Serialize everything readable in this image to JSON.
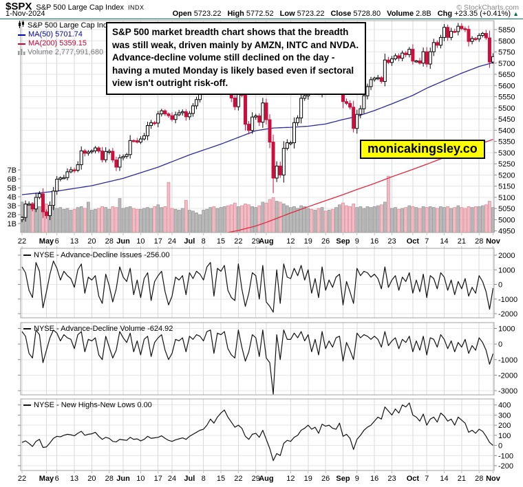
{
  "header": {
    "symbol": "$SPX",
    "name": "S&P 500 Large Cap Index",
    "exchange": "INDX",
    "date": "1-Nov-2024",
    "copyright": "© StockCharts.com"
  },
  "quote": {
    "open_label": "Open",
    "open": "5723.22",
    "high_label": "High",
    "high": "5772.52",
    "low_label": "Low",
    "low": "5723.22",
    "close_label": "Close",
    "close": "5728.80",
    "volume_label": "Volume",
    "volume": "2.8B",
    "chg_label": "Chg",
    "chg": "+23.35 (+0.41%)",
    "up_arrow": "▲"
  },
  "legend": {
    "title": "S&P 500 Large Cap Index",
    "ma50": "MA(50) 5701.74",
    "ma200": "MA(200) 5359.15",
    "volume": "Volume 2,777,991,680"
  },
  "panel_legends": [
    {
      "label": "NYSE - Advance-Decline Issues",
      "value": "-256.00"
    },
    {
      "label": "NYSE - Advance-Decline Volume",
      "value": "-624.92"
    },
    {
      "label": "NYSE - New Highs-New Lows",
      "value": "0.00"
    }
  ],
  "annotation": {
    "text": "S&P 500 market breadth chart shows that the breadth was still weak, driven mainly by AMZN, INTC and NVDA. Advance-decline volume still declined on the day - having a muted Monday is likely based even if sectoral view isn't outright risk-off."
  },
  "watermark": "monicakingsley.co",
  "colors": {
    "up_candle_fill": "#ffffff",
    "up_candle_stroke": "#000000",
    "down_candle": "#cc0f3c",
    "ma50": "#2a2a9e",
    "ma200": "#e0283f",
    "ma50_text": "#0000b0",
    "ma200_text": "#cc0033",
    "volume_text": "#777777",
    "vol_up_fill": "#b6b6b6",
    "vol_up_stroke": "#8e8e8e",
    "vol_down_fill": "#f2b9c2",
    "vol_down_stroke": "#d9808f",
    "grid_h": "#e6e6e6",
    "grid_v": "#d9d9d9",
    "panel_border": "#a0a0a0",
    "tick": "#888888",
    "line_black": "#111111",
    "chg_green": "#007744",
    "watermark_bg": "#ffff00"
  },
  "chart_data": [
    {
      "type": "candlestick",
      "title": "S&P 500 Large Cap Index with MA(50), MA(200) and volume",
      "ylim": [
        4940,
        5890
      ],
      "y_ticks": [
        5850,
        5800,
        5750,
        5700,
        5650,
        5600,
        5550,
        5500,
        5450,
        5400,
        5350,
        5300,
        5250,
        5200,
        5150,
        5100,
        5050,
        5000,
        4950
      ],
      "volume_axis_ticks": [
        7,
        6,
        5,
        4,
        3,
        2,
        1
      ],
      "volume_axis_unit": "B",
      "x_ticks": [
        {
          "i": 0,
          "l": "22"
        },
        {
          "i": 7,
          "l": "May",
          "b": 1
        },
        {
          "i": 10,
          "l": "6"
        },
        {
          "i": 15,
          "l": "13"
        },
        {
          "i": 20,
          "l": "20"
        },
        {
          "i": 25,
          "l": "28"
        },
        {
          "i": 29,
          "l": "Jun",
          "b": 1
        },
        {
          "i": 34,
          "l": "10"
        },
        {
          "i": 39,
          "l": "17"
        },
        {
          "i": 43,
          "l": "24"
        },
        {
          "i": 48,
          "l": "Jul",
          "b": 1
        },
        {
          "i": 52,
          "l": "8"
        },
        {
          "i": 57,
          "l": "15"
        },
        {
          "i": 62,
          "l": "22"
        },
        {
          "i": 67,
          "l": "29"
        },
        {
          "i": 70,
          "l": "Aug",
          "b": 1
        },
        {
          "i": 77,
          "l": "12"
        },
        {
          "i": 82,
          "l": "19"
        },
        {
          "i": 87,
          "l": "26"
        },
        {
          "i": 92,
          "l": "Sep",
          "b": 1
        },
        {
          "i": 96,
          "l": "9"
        },
        {
          "i": 101,
          "l": "16"
        },
        {
          "i": 106,
          "l": "23"
        },
        {
          "i": 112,
          "l": "Oct",
          "b": 1
        },
        {
          "i": 116,
          "l": "7"
        },
        {
          "i": 121,
          "l": "14"
        },
        {
          "i": 126,
          "l": "21"
        },
        {
          "i": 131,
          "l": "28"
        },
        {
          "i": 135,
          "l": "Nov",
          "b": 1
        }
      ],
      "close": [
        5010,
        5070,
        5070,
        5048,
        5100,
        5116,
        5035,
        5018,
        5064,
        5128,
        5181,
        5187,
        5188,
        5214,
        5223,
        5221,
        5246,
        5308,
        5297,
        5303,
        5308,
        5321,
        5307,
        5268,
        5305,
        5306,
        5267,
        5235,
        5277,
        5283,
        5291,
        5354,
        5353,
        5347,
        5361,
        5375,
        5421,
        5434,
        5432,
        5473,
        5487,
        5473,
        5465,
        5448,
        5469,
        5478,
        5483,
        5460,
        5475,
        5509,
        5537,
        5567,
        5573,
        5577,
        5634,
        5585,
        5615,
        5631,
        5667,
        5588,
        5544,
        5505,
        5564,
        5556,
        5427,
        5399,
        5459,
        5464,
        5436,
        5522,
        5447,
        5347,
        5186,
        5240,
        5200,
        5319,
        5344,
        5344,
        5434,
        5455,
        5543,
        5554,
        5608,
        5597,
        5620,
        5570,
        5635,
        5616,
        5626,
        5592,
        5592,
        5648,
        5528,
        5520,
        5503,
        5408,
        5471,
        5496,
        5554,
        5595,
        5626,
        5633,
        5635,
        5618,
        5714,
        5703,
        5719,
        5733,
        5722,
        5745,
        5738,
        5762,
        5709,
        5710,
        5700,
        5751,
        5696,
        5751,
        5792,
        5780,
        5815,
        5860,
        5815,
        5842,
        5841,
        5865,
        5854,
        5851,
        5797,
        5810,
        5808,
        5824,
        5833,
        5813,
        5705,
        5729
      ],
      "volume_billions": [
        3.4,
        3.2,
        3.1,
        3.3,
        3.0,
        2.9,
        3.5,
        3.2,
        3.0,
        2.9,
        2.7,
        2.8,
        2.6,
        2.7,
        2.5,
        2.6,
        2.8,
        2.9,
        2.7,
        3.4,
        2.5,
        2.6,
        2.7,
        2.9,
        2.8,
        2.6,
        2.9,
        2.8,
        3.8,
        2.7,
        2.8,
        2.9,
        2.7,
        2.6,
        2.6,
        2.7,
        2.8,
        2.7,
        2.9,
        3.1,
        2.8,
        2.9,
        5.6,
        2.7,
        2.6,
        2.5,
        2.7,
        3.6,
        2.5,
        2.4,
        2.2,
        2.0,
        2.5,
        2.6,
        2.8,
        2.9,
        2.7,
        2.8,
        2.9,
        3.0,
        3.1,
        3.3,
        2.9,
        3.0,
        3.2,
        3.1,
        2.9,
        2.8,
        3.0,
        3.4,
        3.3,
        3.7,
        3.9,
        3.5,
        3.4,
        3.2,
        3.0,
        2.8,
        2.9,
        2.7,
        3.0,
        2.9,
        2.7,
        2.6,
        2.5,
        2.7,
        2.8,
        2.4,
        2.5,
        2.6,
        2.8,
        3.1,
        3.3,
        3.0,
        2.9,
        3.2,
        2.8,
        2.9,
        2.7,
        2.9,
        2.8,
        2.9,
        3.0,
        3.1,
        3.4,
        6.3,
        2.7,
        2.8,
        2.6,
        2.7,
        2.8,
        3.0,
        2.9,
        2.8,
        2.7,
        2.9,
        2.8,
        2.9,
        2.8,
        2.7,
        2.9,
        2.8,
        2.9,
        2.7,
        2.8,
        3.0,
        2.8,
        2.7,
        2.9,
        2.8,
        2.9,
        2.9,
        3.0,
        3.1,
        3.5,
        2.8
      ],
      "ma50_anchors": [
        [
          0,
          5112
        ],
        [
          10,
          5128
        ],
        [
          20,
          5152
        ],
        [
          29,
          5185
        ],
        [
          39,
          5235
        ],
        [
          48,
          5290
        ],
        [
          57,
          5338
        ],
        [
          67,
          5398
        ],
        [
          72,
          5410
        ],
        [
          77,
          5413
        ],
        [
          82,
          5418
        ],
        [
          87,
          5428
        ],
        [
          92,
          5448
        ],
        [
          96,
          5462
        ],
        [
          101,
          5488
        ],
        [
          106,
          5518
        ],
        [
          112,
          5556
        ],
        [
          116,
          5588
        ],
        [
          121,
          5622
        ],
        [
          126,
          5655
        ],
        [
          131,
          5685
        ],
        [
          135,
          5702
        ]
      ],
      "ma200_anchors": [
        [
          58,
          4940
        ],
        [
          62,
          4952
        ],
        [
          67,
          4972
        ],
        [
          70,
          4988
        ],
        [
          77,
          5030
        ],
        [
          82,
          5058
        ],
        [
          87,
          5085
        ],
        [
          92,
          5112
        ],
        [
          96,
          5135
        ],
        [
          101,
          5162
        ],
        [
          106,
          5192
        ],
        [
          112,
          5225
        ],
        [
          116,
          5248
        ],
        [
          121,
          5278
        ],
        [
          126,
          5308
        ],
        [
          131,
          5338
        ],
        [
          135,
          5359
        ]
      ],
      "wick_low_overrides": {
        "72": 5119,
        "95": 5390
      }
    },
    {
      "type": "line",
      "title": "NYSE - Advance-Decline Issues",
      "last_value": -256.0,
      "y_ticks": [
        2000,
        1000,
        0,
        -1000,
        -2000
      ],
      "ylim": [
        -2300,
        2450
      ],
      "values": [
        1200,
        800,
        -400,
        -900,
        1500,
        900,
        -1600,
        -500,
        700,
        1600,
        1100,
        300,
        900,
        600,
        400,
        -200,
        1000,
        1400,
        -600,
        500,
        300,
        600,
        -800,
        -1300,
        700,
        -100,
        -1200,
        -300,
        1200,
        500,
        200,
        1100,
        -700,
        300,
        -900,
        400,
        800,
        -1100,
        200,
        600,
        900,
        -500,
        -1400,
        -800,
        500,
        300,
        600,
        -700,
        800,
        400,
        900,
        700,
        300,
        1200,
        1500,
        -800,
        1100,
        900,
        1300,
        -400,
        -900,
        -1100,
        1400,
        -300,
        -1500,
        -600,
        800,
        600,
        -1000,
        1300,
        -1200,
        -1500,
        -1900,
        1000,
        -1300,
        1400,
        500,
        400,
        1100,
        600,
        1300,
        300,
        1000,
        -600,
        400,
        -900,
        1200,
        -400,
        300,
        -200,
        500,
        700,
        -1400,
        200,
        -500,
        -1300,
        1100,
        600,
        900,
        800,
        500,
        700,
        400,
        -300,
        1200,
        -200,
        300,
        600,
        -400,
        500,
        200,
        800,
        -600,
        300,
        -500,
        700,
        -900,
        600,
        400,
        -300,
        800,
        500,
        -400,
        300,
        -700,
        200,
        -300,
        400,
        -800,
        -200,
        -600,
        600,
        200,
        -500,
        -1700,
        -256
      ]
    },
    {
      "type": "line",
      "title": "NYSE - Advance-Decline Volume",
      "last_value": -624.92,
      "y_ticks": [
        1000,
        0,
        -1000,
        -2000,
        -3000
      ],
      "ylim": [
        -3450,
        1380
      ],
      "values": [
        800,
        500,
        -600,
        -900,
        900,
        600,
        -1200,
        -400,
        400,
        900,
        700,
        200,
        600,
        400,
        300,
        -300,
        600,
        800,
        -500,
        300,
        200,
        400,
        -700,
        -1000,
        500,
        -200,
        -900,
        -400,
        800,
        400,
        100,
        700,
        -500,
        200,
        -700,
        300,
        500,
        -800,
        100,
        400,
        600,
        -400,
        -1000,
        -600,
        300,
        200,
        400,
        -500,
        500,
        300,
        600,
        500,
        200,
        800,
        900,
        -600,
        700,
        600,
        800,
        -300,
        -700,
        -900,
        900,
        -200,
        -1100,
        -500,
        600,
        400,
        -800,
        900,
        -900,
        -1200,
        -3300,
        600,
        -1000,
        900,
        300,
        300,
        700,
        400,
        800,
        200,
        600,
        -500,
        300,
        -700,
        800,
        -300,
        200,
        -200,
        400,
        500,
        -1100,
        100,
        -400,
        -1000,
        700,
        400,
        600,
        500,
        300,
        500,
        300,
        -200,
        800,
        -100,
        200,
        400,
        -300,
        300,
        100,
        500,
        -500,
        200,
        -400,
        500,
        -700,
        400,
        300,
        -200,
        600,
        300,
        -300,
        200,
        -500,
        100,
        -200,
        300,
        -600,
        -100,
        -400,
        400,
        100,
        -400,
        -1300,
        -624.92
      ]
    },
    {
      "type": "line",
      "title": "NYSE - New Highs-New Lows",
      "last_value": 0.0,
      "y_ticks": [
        400,
        300,
        200,
        100,
        0,
        -100,
        -200
      ],
      "ylim": [
        -260,
        460
      ],
      "values": [
        30,
        45,
        20,
        -10,
        40,
        60,
        -20,
        -15,
        25,
        70,
        90,
        85,
        100,
        110,
        105,
        95,
        120,
        140,
        100,
        110,
        115,
        130,
        90,
        60,
        80,
        70,
        40,
        35,
        60,
        55,
        50,
        80,
        60,
        65,
        45,
        60,
        90,
        70,
        75,
        80,
        95,
        70,
        50,
        40,
        55,
        65,
        75,
        60,
        90,
        110,
        130,
        150,
        160,
        200,
        260,
        220,
        280,
        320,
        350,
        280,
        230,
        180,
        200,
        170,
        90,
        60,
        110,
        120,
        80,
        150,
        60,
        -30,
        -150,
        -80,
        -100,
        20,
        50,
        40,
        80,
        100,
        150,
        170,
        200,
        160,
        180,
        120,
        210,
        190,
        200,
        170,
        160,
        220,
        90,
        110,
        70,
        -40,
        60,
        100,
        150,
        180,
        200,
        240,
        280,
        260,
        380,
        340,
        300,
        360,
        320,
        400,
        380,
        420,
        300,
        280,
        240,
        310,
        200,
        260,
        280,
        230,
        320,
        290,
        240,
        260,
        200,
        280,
        250,
        220,
        130,
        150,
        120,
        160,
        140,
        90,
        30,
        0
      ]
    }
  ]
}
